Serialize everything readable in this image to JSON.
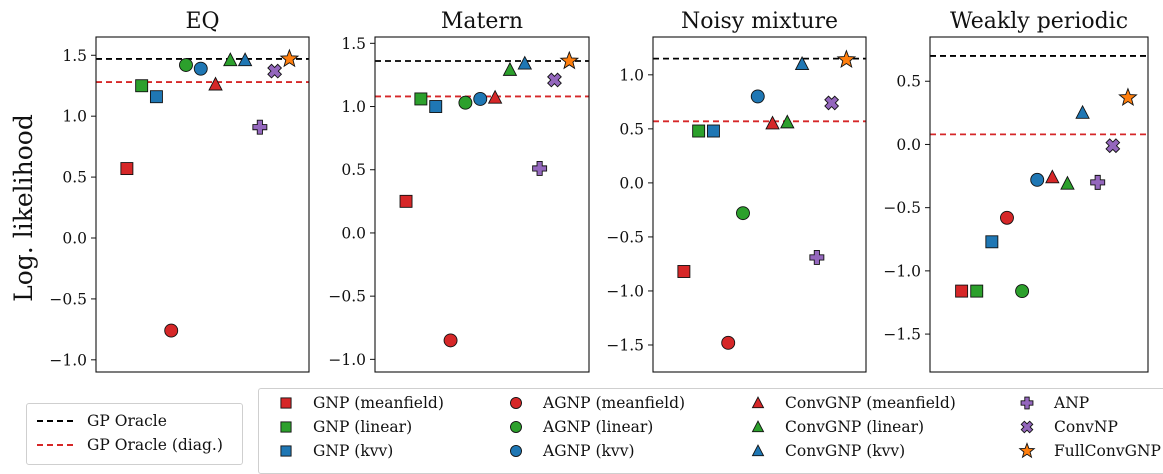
{
  "figure": {
    "ylabel": "Log. likelihood"
  },
  "colors": {
    "red": "#d62728",
    "green": "#2ca02c",
    "blue": "#1f77b4",
    "purple": "#9467bd",
    "orange": "#ff7f0e",
    "oracle": "#000000",
    "oracle_diag": "#d62728"
  },
  "legend_lines": [
    {
      "label": "GP Oracle",
      "color": "#000000"
    },
    {
      "label": "GP Oracle (diag.)",
      "color": "#d62728"
    }
  ],
  "legend_markers": [
    {
      "label": "GNP (meanfield)",
      "marker": "square",
      "color": "#d62728"
    },
    {
      "label": "GNP (linear)",
      "marker": "square",
      "color": "#2ca02c"
    },
    {
      "label": "GNP (kvv)",
      "marker": "square",
      "color": "#1f77b4"
    },
    {
      "label": "AGNP (meanfield)",
      "marker": "circle",
      "color": "#d62728"
    },
    {
      "label": "AGNP (linear)",
      "marker": "circle",
      "color": "#2ca02c"
    },
    {
      "label": "AGNP (kvv)",
      "marker": "circle",
      "color": "#1f77b4"
    },
    {
      "label": "ConvGNP (meanfield)",
      "marker": "triangle",
      "color": "#d62728"
    },
    {
      "label": "ConvGNP (linear)",
      "marker": "triangle",
      "color": "#2ca02c"
    },
    {
      "label": "ConvGNP (kvv)",
      "marker": "triangle",
      "color": "#1f77b4"
    },
    {
      "label": "ANP",
      "marker": "plus",
      "color": "#9467bd"
    },
    {
      "label": "ConvNP",
      "marker": "x",
      "color": "#9467bd"
    },
    {
      "label": "FullConvGNP",
      "marker": "star",
      "color": "#ff7f0e"
    }
  ],
  "chart_data": [
    {
      "type": "scatter",
      "title": "EQ",
      "ylim": [
        -1.1,
        1.65
      ],
      "yticks": [
        -1.0,
        -0.5,
        0.0,
        0.5,
        1.0,
        1.5
      ],
      "ytick_labels": [
        "−1.0",
        "−0.5",
        "0.0",
        "0.5",
        "1.0",
        "1.5"
      ],
      "oracle": 1.47,
      "oracle_diag": 1.28,
      "values": [
        0.57,
        1.25,
        1.16,
        -0.76,
        1.42,
        1.39,
        1.26,
        1.46,
        1.46,
        0.91,
        1.37,
        1.47
      ]
    },
    {
      "type": "scatter",
      "title": "Matern",
      "ylim": [
        -1.1,
        1.55
      ],
      "yticks": [
        -1.0,
        -0.5,
        0.0,
        0.5,
        1.0,
        1.5
      ],
      "ytick_labels": [
        "−1.0",
        "−0.5",
        "0.0",
        "0.5",
        "1.0",
        "1.5"
      ],
      "oracle": 1.36,
      "oracle_diag": 1.08,
      "values": [
        0.25,
        1.06,
        1.0,
        -0.85,
        1.03,
        1.06,
        1.07,
        1.29,
        1.34,
        0.51,
        1.21,
        1.36
      ]
    },
    {
      "type": "scatter",
      "title": "Noisy mixture",
      "ylim": [
        -1.75,
        1.35
      ],
      "yticks": [
        -1.5,
        -1.0,
        -0.5,
        0.0,
        0.5,
        1.0
      ],
      "ytick_labels": [
        "−1.5",
        "−1.0",
        "−0.5",
        "0.0",
        "0.5",
        "1.0"
      ],
      "oracle": 1.15,
      "oracle_diag": 0.57,
      "values": [
        -0.82,
        0.48,
        0.48,
        -1.48,
        -0.28,
        0.8,
        0.55,
        0.56,
        1.1,
        -0.69,
        0.74,
        1.14
      ]
    },
    {
      "type": "scatter",
      "title": "Weakly periodic",
      "ylim": [
        -1.8,
        0.85
      ],
      "yticks": [
        -1.5,
        -1.0,
        -0.5,
        0.0,
        0.5
      ],
      "ytick_labels": [
        "−1.5",
        "−1.0",
        "−0.5",
        "0.0",
        "0.5"
      ],
      "oracle": 0.7,
      "oracle_diag": 0.08,
      "values": [
        -1.16,
        -1.16,
        -0.77,
        -0.58,
        -1.16,
        -0.28,
        -0.26,
        -0.31,
        0.25,
        -0.3,
        -0.01,
        0.37
      ]
    }
  ]
}
